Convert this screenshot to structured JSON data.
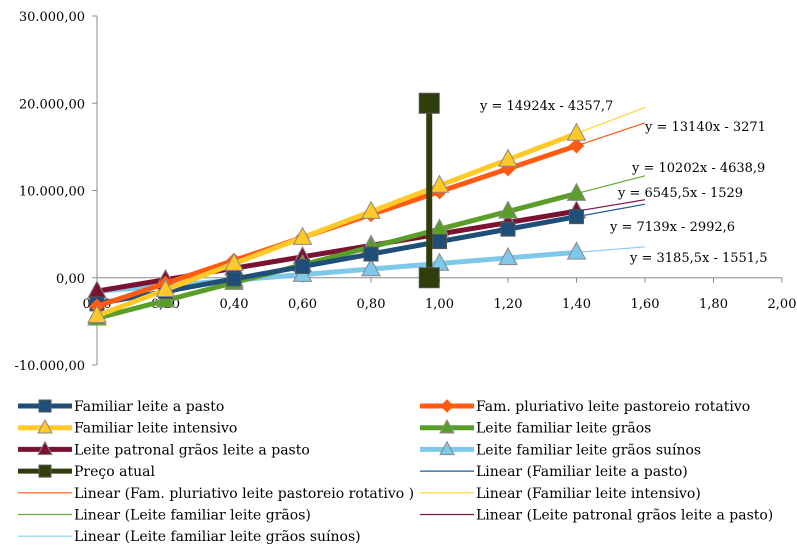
{
  "chart_data": {
    "type": "line",
    "x_axis": {
      "min": 0,
      "max": 2,
      "ticks": [
        0,
        0.2,
        0.4,
        0.6,
        0.8,
        1.0,
        1.2,
        1.4,
        1.6,
        1.8,
        2.0
      ],
      "tick_labels": [
        "0,00",
        "0,20",
        "0,40",
        "0,60",
        "0,80",
        "1,00",
        "1,20",
        "1,40",
        "1,60",
        "1,80",
        "2,00"
      ]
    },
    "y_axis": {
      "min": -10000,
      "max": 30000,
      "ticks": [
        30000,
        20000,
        10000,
        0,
        -10000
      ],
      "tick_labels": [
        "30.000,00",
        "20.000,00",
        "10.000,00",
        "0,00",
        "-10.000,00"
      ]
    },
    "grid": false,
    "legend_position": "bottom",
    "series": [
      {
        "name": "Familiar leite a pasto",
        "color": "#1F4E79",
        "marker": "square",
        "x": [
          0,
          0.2,
          0.4,
          0.6,
          0.8,
          1.0,
          1.2,
          1.4
        ],
        "y": [
          -2993,
          -1565,
          -137,
          1291,
          2719,
          4146,
          5574,
          7002
        ]
      },
      {
        "name": "Fam. pluriativo leite pastoreio rotativo",
        "color": "#FF5B14",
        "marker": "diamond",
        "x": [
          0,
          0.2,
          0.4,
          0.6,
          0.8,
          1.0,
          1.2,
          1.4
        ],
        "y": [
          -3271,
          -643,
          1985,
          4613,
          7241,
          9869,
          12497,
          15125
        ]
      },
      {
        "name": "Familiar leite intensivo",
        "color": "#FFC928",
        "marker": "triangle",
        "x": [
          0,
          0.2,
          0.4,
          0.6,
          0.8,
          1.0,
          1.2,
          1.4
        ],
        "y": [
          -4358,
          -1373,
          1612,
          4597,
          7582,
          10567,
          13552,
          16537
        ]
      },
      {
        "name": "Leite familiar leite grãos",
        "color": "#5A9E2A",
        "marker": "triangle",
        "x": [
          0,
          0.2,
          0.4,
          0.6,
          0.8,
          1.0,
          1.2,
          1.4
        ],
        "y": [
          -4639,
          -2598,
          -558,
          1482,
          3523,
          5563,
          7604,
          9644
        ]
      },
      {
        "name": "Leite patronal grãos leite a pasto",
        "color": "#7B1230",
        "marker": "triangle",
        "x": [
          0,
          0.2,
          0.4,
          0.6,
          0.8,
          1.0,
          1.2,
          1.4
        ],
        "y": [
          -1529,
          -220,
          1089,
          2398,
          3707,
          5017,
          6326,
          7635
        ]
      },
      {
        "name": "Leite familiar leite grãos suínos",
        "color": "#7EC8EA",
        "marker": "triangle",
        "x": [
          0,
          0.2,
          0.4,
          0.6,
          0.8,
          1.0,
          1.2,
          1.4
        ],
        "y": [
          -1552,
          -915,
          -277,
          360,
          997,
          1634,
          2271,
          2908
        ]
      },
      {
        "name": "Preço atual",
        "color": "#2E3D0A",
        "marker": "square",
        "x": [
          0.97,
          0.97
        ],
        "y": [
          20000,
          0
        ]
      }
    ],
    "trendlines": [
      {
        "name": "Linear (Familiar leite a pasto)",
        "color": "#1F5A96",
        "slope": 7139,
        "intercept": -2992.6,
        "x_end": 1.6,
        "equation": "y = 7139x - 2992,6"
      },
      {
        "name": "Linear (Fam. pluriativo leite pastoreio rotativo )",
        "color": "#FF5B14",
        "slope": 13140,
        "intercept": -3271,
        "x_end": 1.6,
        "equation": "y = 13140x - 3271"
      },
      {
        "name": "Linear (Familiar leite intensivo)",
        "color": "#FFD52E",
        "slope": 14924,
        "intercept": -4357.7,
        "x_end": 1.6,
        "equation": "y = 14924x - 4357,7"
      },
      {
        "name": "Linear (Leite familiar leite grãos)",
        "color": "#6AAA35",
        "slope": 10202,
        "intercept": -4638.9,
        "x_end": 1.6,
        "equation": "y = 10202x - 4638,9"
      },
      {
        "name": "Linear (Leite patronal grãos leite a pasto)",
        "color": "#7B1A4A",
        "slope": 6545.5,
        "intercept": -1529,
        "x_end": 1.6,
        "equation": "y = 6545,5x - 1529"
      },
      {
        "name": "Linear (Leite familiar leite grãos suínos)",
        "color": "#8ACDF0",
        "slope": 3185.5,
        "intercept": -1551.5,
        "x_end": 1.6,
        "equation": "y = 3185,5x - 1551,5"
      }
    ]
  }
}
